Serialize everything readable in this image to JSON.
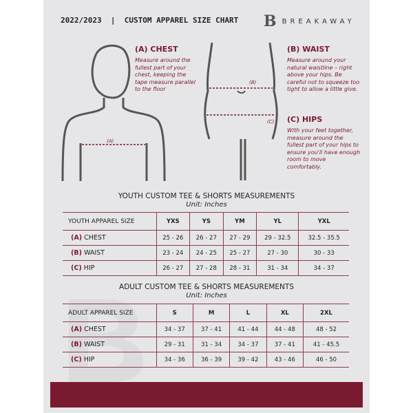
{
  "header": {
    "title": "2022/2023  |  CUSTOM APPAREL SIZE CHART",
    "brand": "BREAKAWAY",
    "logo_letter": "B"
  },
  "guides": {
    "chest": {
      "title": "(A) CHEST",
      "text": "Measure around the fullest part of your chest, keeping the tape measure parallel to the floor",
      "marker": "(A)"
    },
    "waist": {
      "title": "(B) WAIST",
      "text": "Measure around your natural waistline – right above your hips. Be careful not to squeeze too tight to allow a little give.",
      "marker": "(B)"
    },
    "hips": {
      "title": "(C) HIPS",
      "text": "With your feet together, measure around the fullest part of your hips to ensure you'll have enough room to move comfortably.",
      "marker": "(C)"
    }
  },
  "youth": {
    "title": "YOUTH CUSTOM TEE & SHORTS MEASUREMENTS",
    "unit": "Unit: Inches",
    "header": "YOUTH APPAREL SIZE",
    "sizes": [
      "YXS",
      "YS",
      "YM",
      "YL",
      "YXL"
    ],
    "rows": [
      {
        "letter": "(A)",
        "label": "CHEST",
        "values": [
          "25 - 26",
          "26 - 27",
          "27 - 29",
          "29 - 32.5",
          "32.5 - 35.5"
        ]
      },
      {
        "letter": "(B)",
        "label": "WAIST",
        "values": [
          "23 - 24",
          "24 - 25",
          "25 - 27",
          "27 - 30",
          "30 - 33"
        ]
      },
      {
        "letter": "(C)",
        "label": "HIP",
        "values": [
          "26 - 27",
          "27 - 28",
          "28 - 31",
          "31 - 34",
          "34 - 37"
        ]
      }
    ]
  },
  "adult": {
    "title": "ADULT CUSTOM TEE & SHORTS MEASUREMENTS",
    "unit": "Unit: Inches",
    "header": "ADULT APPAREL SIZE",
    "sizes": [
      "S",
      "M",
      "L",
      "XL",
      "2XL"
    ],
    "rows": [
      {
        "letter": "(A)",
        "label": "CHEST",
        "values": [
          "34 - 37",
          "37 - 41",
          "41 - 44",
          "44 - 48",
          "48 - 52"
        ]
      },
      {
        "letter": "(B)",
        "label": "WAIST",
        "values": [
          "29 - 31",
          "31 - 34",
          "34 - 37",
          "37 - 41",
          "41 - 45.5"
        ]
      },
      {
        "letter": "(C)",
        "label": "HIP",
        "values": [
          "34 - 36",
          "36 - 39",
          "39 - 42",
          "43 - 46",
          "46 - 50"
        ]
      }
    ]
  },
  "colors": {
    "accent": "#7a1a30",
    "panel": "#e6e6e8"
  }
}
